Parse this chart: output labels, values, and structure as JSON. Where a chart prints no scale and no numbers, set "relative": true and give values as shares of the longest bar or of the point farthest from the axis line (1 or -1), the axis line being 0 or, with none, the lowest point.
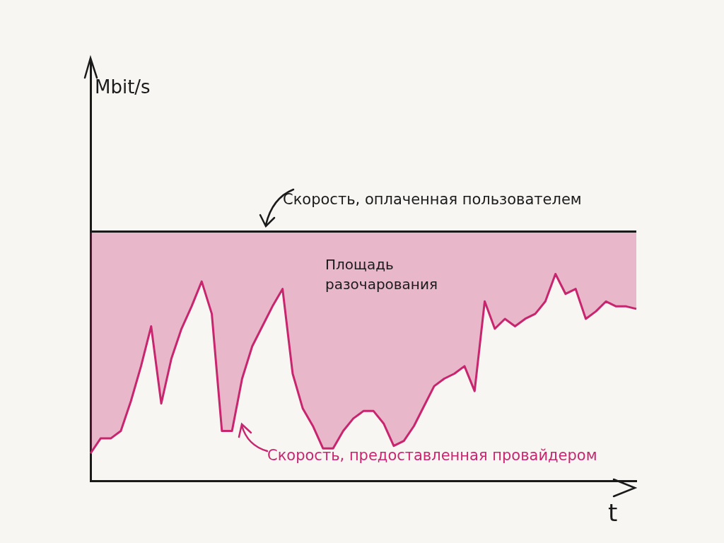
{
  "chart_data": {
    "type": "line",
    "relative": true,
    "xlabel": "t",
    "categories": [
      null,
      null,
      null,
      null,
      null,
      null,
      null,
      null,
      null,
      null,
      null,
      null,
      null,
      null,
      null,
      null,
      null,
      null,
      null,
      null,
      null,
      null,
      null,
      null,
      null,
      null,
      null,
      null,
      null,
      null,
      null,
      null,
      null,
      null,
      null,
      null,
      null,
      null,
      null,
      null,
      null,
      null,
      null,
      null,
      null,
      null,
      null,
      null,
      null,
      null,
      null,
      null,
      null,
      null,
      null
    ],
    "series": [
      {
        "name": "Скорость, оплаченная пользователем",
        "color": "#1a1a1a",
        "values": [
          1,
          1,
          1,
          1,
          1,
          1,
          1,
          1,
          1,
          1,
          1,
          1,
          1,
          1,
          1,
          1,
          1,
          1,
          1,
          1,
          1,
          1,
          1,
          1,
          1,
          1,
          1,
          1,
          1,
          1,
          1,
          1,
          1,
          1,
          1,
          1,
          1,
          1,
          1,
          1,
          1,
          1,
          1,
          1,
          1,
          1,
          1,
          1,
          1,
          1,
          1,
          1,
          1,
          1,
          1
        ]
      },
      {
        "name": "Скорость, предоставленная провайдером",
        "color": "#c8266e",
        "values": [
          0.11,
          0.17,
          0.17,
          0.2,
          0.32,
          0.46,
          0.62,
          0.31,
          0.49,
          0.61,
          0.7,
          0.8,
          0.67,
          0.2,
          0.2,
          0.41,
          0.54,
          0.62,
          0.7,
          0.77,
          0.43,
          0.29,
          0.22,
          0.13,
          0.13,
          0.2,
          0.25,
          0.28,
          0.28,
          0.23,
          0.14,
          0.16,
          0.22,
          0.3,
          0.38,
          0.41,
          0.43,
          0.46,
          0.36,
          0.72,
          0.61,
          0.65,
          0.62,
          0.65,
          0.67,
          0.72,
          0.83,
          0.75,
          0.77,
          0.65,
          0.68,
          0.72,
          0.7,
          0.7,
          0.69
        ],
        "lower": [
          0.11,
          0.17,
          0.17,
          0.2,
          0.32,
          0.46,
          0.62,
          0.31,
          0.49,
          0.61,
          0.7,
          0.8,
          0.67,
          0.2,
          0.2,
          0.41,
          0.54,
          0.62,
          0.7,
          0.77,
          0.43,
          0.29,
          0.22,
          0.13,
          0.13,
          0.2,
          0.25,
          0.28,
          0.28,
          0.23,
          0.14,
          0.16,
          0.22,
          0.3,
          0.38,
          0.41,
          0.43,
          0.46,
          0.36,
          0.72,
          0.61,
          0.65,
          0.62,
          0.65,
          0.67,
          0.72,
          0.83,
          0.75,
          0.77,
          0.65,
          0.68,
          0.72,
          0.7,
          0.7,
          0.69
        ],
        "upper": [
          1,
          1,
          1,
          1,
          1,
          1,
          1,
          1,
          1,
          1,
          1,
          1,
          1,
          1,
          1,
          1,
          1,
          1,
          1,
          1,
          1,
          1,
          1,
          1,
          1,
          1,
          1,
          1,
          1,
          1,
          1,
          1,
          1,
          1,
          1,
          1,
          1,
          1,
          1,
          1,
          1,
          1,
          1,
          1,
          1,
          1,
          1,
          1,
          1,
          1,
          1,
          1,
          1,
          1,
          1
        ]
      }
    ],
    "annotations": [
      "Mbit/s",
      "Площадь разочарования"
    ],
    "legend": "bottom",
    "grid": false,
    "marker": "none",
    "line_style": "solid",
    "tick_labels": false
  }
}
